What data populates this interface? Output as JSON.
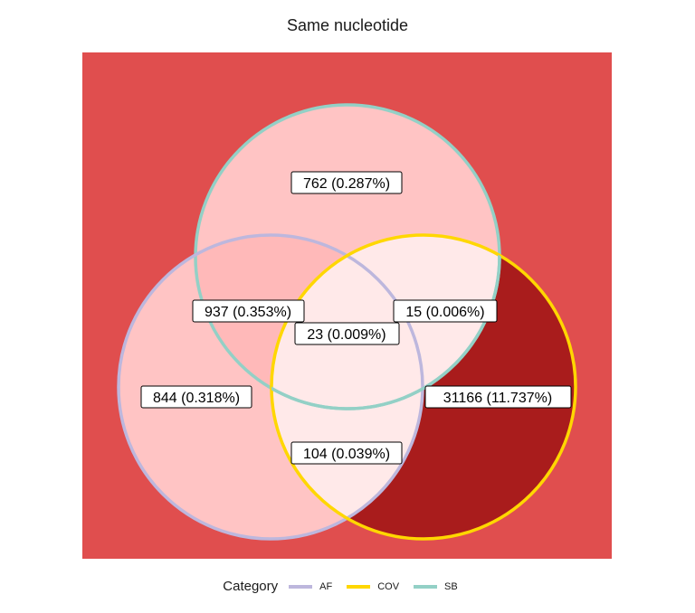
{
  "title": "Same nucleotide",
  "legend": {
    "title": "Category",
    "items": [
      {
        "label": "AF",
        "color": "#bdb7dd"
      },
      {
        "label": "COV",
        "color": "#ffd700"
      },
      {
        "label": "SB",
        "color": "#93d0c6"
      }
    ]
  },
  "regions": {
    "sb_only": "762 (0.287%)",
    "af_sb": "937 (0.353%)",
    "sb_cov": "15 (0.006%)",
    "all_three": "23 (0.009%)",
    "af_only": "844 (0.318%)",
    "cov_only": "31166 (11.737%)",
    "af_cov": "104 (0.039%)"
  },
  "colors": {
    "background": "#e04e4e",
    "light_pink": "#ffc4c4",
    "medium_pink": "#ffb9b9",
    "pale_pink": "#ffe9e9",
    "dark_red": "#a91c1c"
  }
}
